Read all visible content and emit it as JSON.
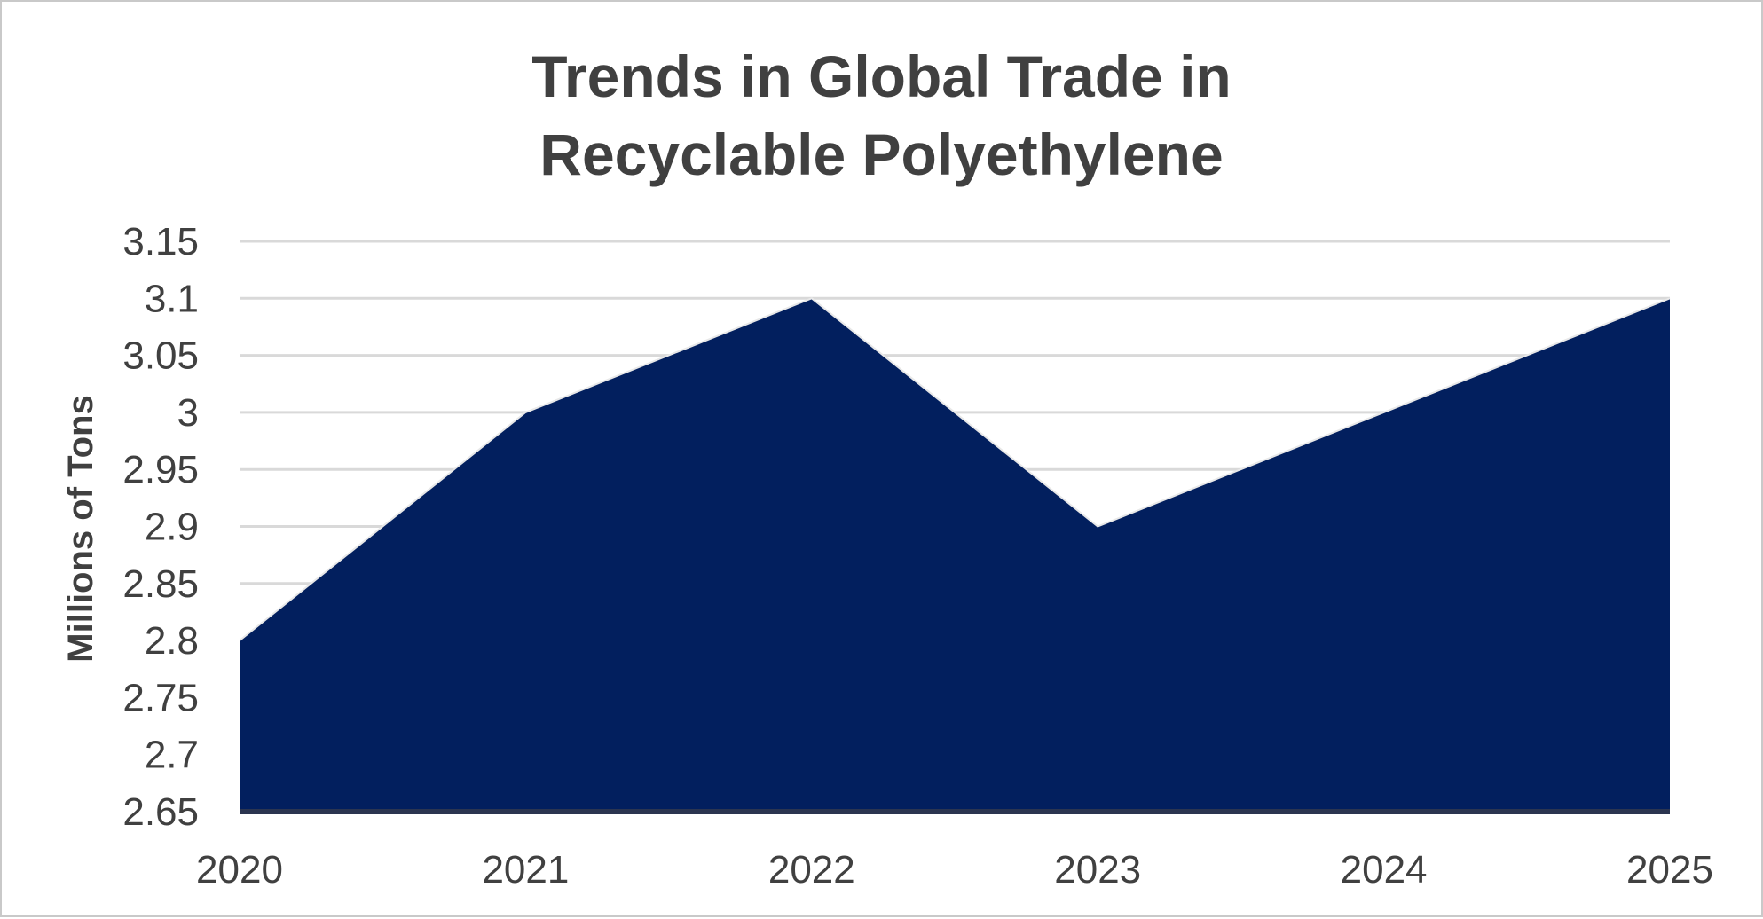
{
  "chart_data": {
    "type": "area",
    "title_lines": [
      "Trends in Global Trade in",
      "Recyclable Polyethylene"
    ],
    "xlabel": "",
    "ylabel": "Millions of Tons",
    "categories": [
      "2020",
      "2021",
      "2022",
      "2023",
      "2024",
      "2025"
    ],
    "series": [
      {
        "values": [
          2.8,
          3.0,
          3.1,
          2.9,
          3.0,
          3.1
        ]
      }
    ],
    "ylim": [
      2.65,
      3.15
    ],
    "yticks": [
      "2.65",
      "2.7",
      "2.75",
      "2.8",
      "2.85",
      "2.9",
      "2.95",
      "3",
      "3.05",
      "3.1",
      "3.15"
    ],
    "grid": true,
    "legend": "none",
    "colors": {
      "area": "#021f5e",
      "grid": "#d9d9d9",
      "text": "#404040"
    }
  }
}
